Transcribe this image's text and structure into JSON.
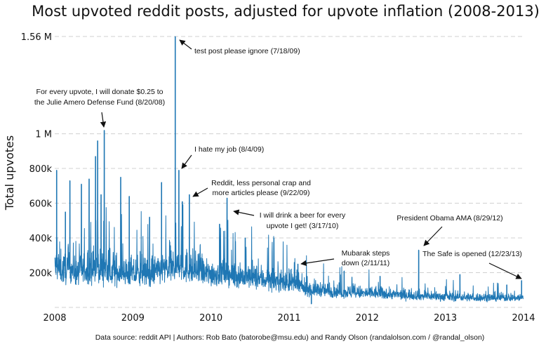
{
  "chart_data": {
    "type": "line",
    "title": "Most upvoted reddit posts, adjusted for upvote inflation (2008-2013)",
    "xlabel": "",
    "ylabel": "Total upvotes",
    "xlim": [
      2008,
      2014
    ],
    "ylim": [
      0,
      1560000
    ],
    "grid": true,
    "x_ticks": [
      {
        "value": 2008,
        "label": "2008"
      },
      {
        "value": 2009,
        "label": "2009"
      },
      {
        "value": 2010,
        "label": "2010"
      },
      {
        "value": 2011,
        "label": "2011"
      },
      {
        "value": 2012,
        "label": "2012"
      },
      {
        "value": 2013,
        "label": "2013"
      },
      {
        "value": 2014,
        "label": "2014"
      }
    ],
    "y_ticks": [
      {
        "value": 200000,
        "label": "200k"
      },
      {
        "value": 400000,
        "label": "400k"
      },
      {
        "value": 600000,
        "label": "600k"
      },
      {
        "value": 800000,
        "label": "800k"
      },
      {
        "value": 1000000,
        "label": "1 M"
      },
      {
        "value": 1560000,
        "label": "1.56 M"
      }
    ],
    "series_color": "#1f77b4",
    "monthly_baseline_k": [
      230,
      210,
      220,
      200,
      210,
      220,
      230,
      220,
      200,
      200,
      210,
      190,
      190,
      200,
      190,
      200,
      210,
      220,
      230,
      230,
      220,
      210,
      200,
      190,
      190,
      200,
      190,
      180,
      180,
      170,
      170,
      160,
      160,
      150,
      150,
      140,
      140,
      120,
      110,
      100,
      100,
      95,
      90,
      90,
      85,
      85,
      80,
      80,
      80,
      80,
      75,
      75,
      72,
      70,
      70,
      68,
      65,
      65,
      62,
      60,
      60,
      58,
      58,
      56,
      55,
      55,
      55,
      55,
      55,
      55,
      55,
      55
    ],
    "spikes": [
      {
        "date": "2008-01-10",
        "value": 790000
      },
      {
        "date": "2008-02-20",
        "value": 550000
      },
      {
        "date": "2008-03-12",
        "value": 730000
      },
      {
        "date": "2008-05-05",
        "value": 710000
      },
      {
        "date": "2008-06-10",
        "value": 740000
      },
      {
        "date": "2008-07-10",
        "value": 870000
      },
      {
        "date": "2008-07-20",
        "value": 960000
      },
      {
        "date": "2008-08-05",
        "value": 650000
      },
      {
        "date": "2008-08-20",
        "value": 1020000
      },
      {
        "date": "2008-11-05",
        "value": 750000
      },
      {
        "date": "2008-12-15",
        "value": 640000
      },
      {
        "date": "2009-03-20",
        "value": 520000
      },
      {
        "date": "2009-05-15",
        "value": 720000
      },
      {
        "date": "2009-07-18",
        "value": 1560000
      },
      {
        "date": "2009-08-04",
        "value": 790000
      },
      {
        "date": "2009-08-20",
        "value": 610000
      },
      {
        "date": "2009-09-22",
        "value": 650000
      },
      {
        "date": "2010-02-10",
        "value": 480000
      },
      {
        "date": "2010-03-17",
        "value": 630000
      },
      {
        "date": "2010-06-10",
        "value": 400000
      },
      {
        "date": "2011-02-11",
        "value": 250000
      },
      {
        "date": "2011-04-15",
        "value": 20000
      },
      {
        "date": "2011-09-15",
        "value": 210000
      },
      {
        "date": "2012-03-01",
        "value": 180000
      },
      {
        "date": "2012-08-29",
        "value": 330000
      },
      {
        "date": "2013-03-10",
        "value": 190000
      },
      {
        "date": "2013-10-15",
        "value": 130000
      },
      {
        "date": "2013-12-23",
        "value": 155000
      }
    ],
    "annotations": [
      {
        "lines": [
          "test post please ignore (7/18/09)"
        ]
      },
      {
        "lines": [
          "For every upvote, I will donate $0.25 to",
          "the Julie Amero Defense Fund (8/20/08)"
        ]
      },
      {
        "lines": [
          "I hate my job (8/4/09)"
        ]
      },
      {
        "lines": [
          "Reddit, less personal crap and",
          "more articles please (9/22/09)"
        ]
      },
      {
        "lines": [
          "I will drink a beer for every",
          "upvote I get! (3/17/10)"
        ]
      },
      {
        "lines": [
          "President Obama AMA (8/29/12)"
        ]
      },
      {
        "lines": [
          "Mubarak steps",
          "down (2/11/11)"
        ]
      },
      {
        "lines": [
          "The Safe is opened (12/23/13)"
        ]
      }
    ],
    "footer": "Data source: reddit API | Authors: Rob Bato (batorobe@msu.edu) and Randy Olson (randalolson.com / @randal_olson)"
  }
}
